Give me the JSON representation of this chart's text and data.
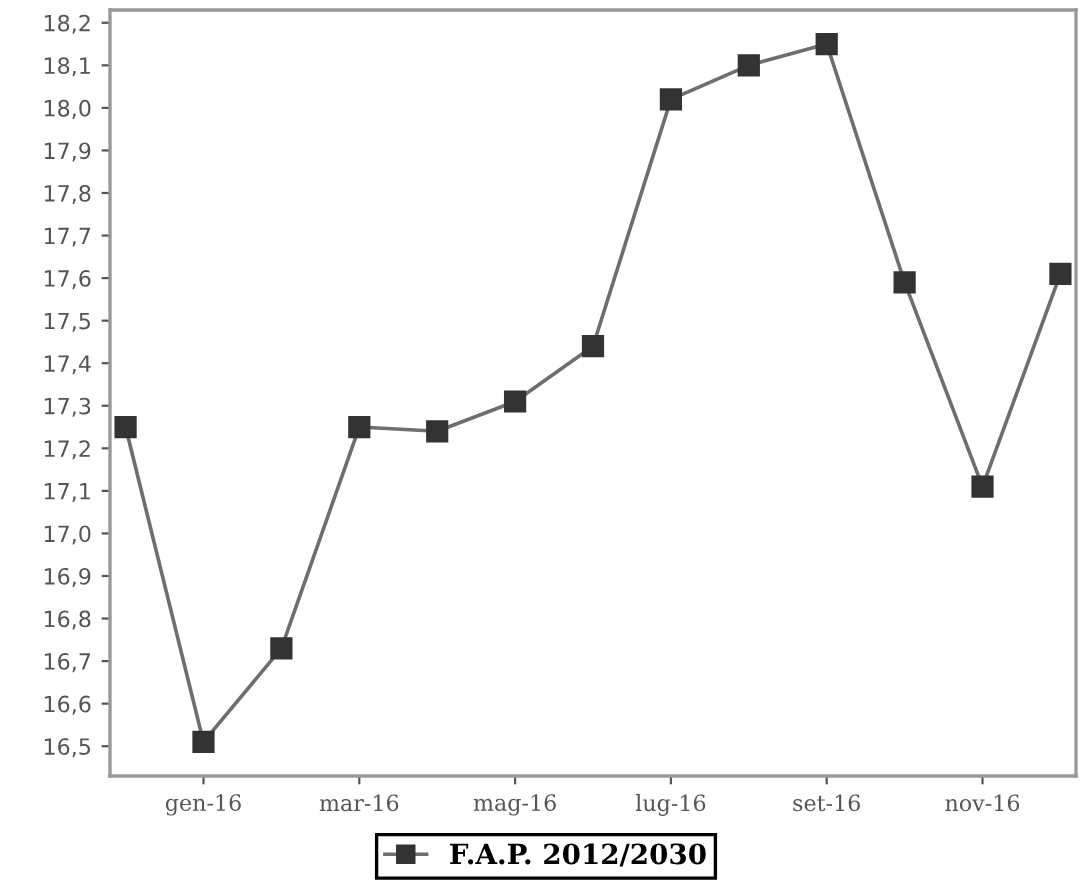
{
  "chart_data": {
    "type": "line",
    "categories": [
      null,
      "gen-16",
      null,
      "mar-16",
      null,
      "mag-16",
      null,
      "lug-16",
      null,
      "set-16",
      null,
      "nov-16",
      null
    ],
    "series": [
      {
        "name": "F.A.P. 2012/2030",
        "color": "#333333",
        "values": [
          17.25,
          16.51,
          16.73,
          17.25,
          17.24,
          17.31,
          17.44,
          18.02,
          18.1,
          18.15,
          17.59,
          17.11,
          17.61
        ]
      }
    ],
    "ylim": [
      16.43,
      18.23
    ],
    "yticks": [
      {
        "value": 16.5,
        "label": "16,5"
      },
      {
        "value": 16.6,
        "label": "16,6"
      },
      {
        "value": 16.7,
        "label": "16,7"
      },
      {
        "value": 16.8,
        "label": "16,8"
      },
      {
        "value": 16.9,
        "label": "16,9"
      },
      {
        "value": 17.0,
        "label": "17,0"
      },
      {
        "value": 17.1,
        "label": "17,1"
      },
      {
        "value": 17.2,
        "label": "17,2"
      },
      {
        "value": 17.3,
        "label": "17,3"
      },
      {
        "value": 17.4,
        "label": "17,4"
      },
      {
        "value": 17.5,
        "label": "17,5"
      },
      {
        "value": 17.6,
        "label": "17,6"
      },
      {
        "value": 17.7,
        "label": "17,7"
      },
      {
        "value": 17.8,
        "label": "17,8"
      },
      {
        "value": 17.9,
        "label": "17,9"
      },
      {
        "value": 18.0,
        "label": "18,0"
      },
      {
        "value": 18.1,
        "label": "18,1"
      },
      {
        "value": 18.2,
        "label": "18,2"
      }
    ],
    "marker": "square",
    "line_style": "solid",
    "legend": "bottom",
    "grid": false
  }
}
